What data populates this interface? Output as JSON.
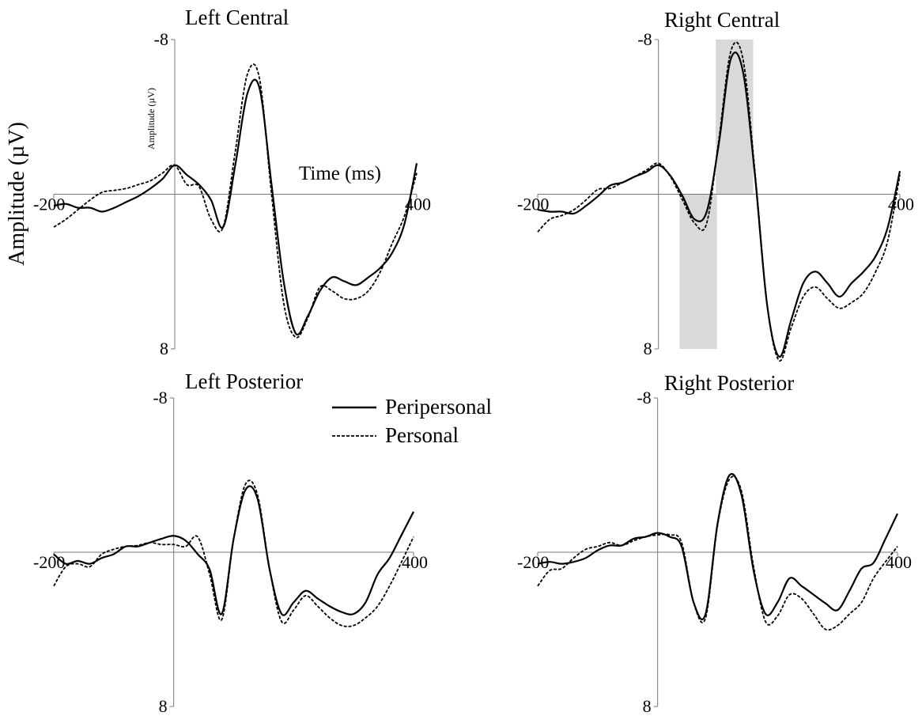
{
  "figure": {
    "ylabel": "Amplitude (µV)"
  },
  "chart_data": [
    {
      "type": "line",
      "title": "Left Central",
      "ylabel": "Amplitude (µV)",
      "xlabel": "Time (ms)",
      "x": [
        -200,
        -180,
        -160,
        -140,
        -120,
        -100,
        -80,
        -60,
        -40,
        -20,
        0,
        20,
        40,
        60,
        80,
        100,
        120,
        140,
        160,
        180,
        200,
        220,
        240,
        260,
        280,
        300,
        320,
        340,
        360,
        380,
        400
      ],
      "series": [
        {
          "name": "Peripersonal",
          "color": "#000000",
          "dash": false,
          "values": [
            0.6,
            0.5,
            0.7,
            0.7,
            0.9,
            0.7,
            0.4,
            0.1,
            -0.3,
            -0.8,
            -1.5,
            -1.0,
            -0.5,
            0.3,
            1.7,
            -1.5,
            -5.2,
            -5.5,
            -0.5,
            4.5,
            7.2,
            6.3,
            5.0,
            4.3,
            4.5,
            4.7,
            4.3,
            3.8,
            3.0,
            1.5,
            -1.6
          ]
        },
        {
          "name": "Personal",
          "color": "#000000",
          "dash": true,
          "values": [
            1.7,
            1.3,
            0.8,
            0.3,
            -0.1,
            -0.2,
            -0.3,
            -0.5,
            -0.7,
            -1.1,
            -1.5,
            -0.5,
            -0.4,
            1.3,
            1.7,
            -2.2,
            -6.2,
            -6.0,
            0,
            5.6,
            7.4,
            6.4,
            4.8,
            5.0,
            5.4,
            5.4,
            5.0,
            4.0,
            2.5,
            1.1,
            -1.1
          ]
        }
      ],
      "xlim": [
        -200,
        400
      ],
      "ylim": [
        -8,
        8
      ],
      "xticks": [
        -200,
        400
      ],
      "yticks": [
        -8,
        8
      ],
      "y_inverted": true
    },
    {
      "type": "line",
      "title": "Right Central",
      "x": [
        -200,
        -180,
        -160,
        -140,
        -120,
        -100,
        -80,
        -60,
        -40,
        -20,
        0,
        20,
        40,
        60,
        80,
        100,
        120,
        140,
        160,
        180,
        200,
        220,
        240,
        260,
        280,
        300,
        320,
        340,
        360,
        380,
        400
      ],
      "series": [
        {
          "name": "Peripersonal",
          "color": "#000000",
          "dash": false,
          "values": [
            0.8,
            0.9,
            0.9,
            1.0,
            0.6,
            0.1,
            -0.45,
            -0.6,
            -0.9,
            -1.15,
            -1.5,
            -0.95,
            0.1,
            1.3,
            0.9,
            -2.6,
            -7.0,
            -6.35,
            -0.95,
            5.7,
            8.4,
            6.5,
            4.6,
            4.0,
            4.6,
            5.3,
            4.6,
            4.0,
            3.2,
            1.7,
            -1.2
          ]
        },
        {
          "name": "Personal",
          "color": "#000000",
          "dash": true,
          "values": [
            1.95,
            1.3,
            1.1,
            0.8,
            0.3,
            -0.25,
            -0.3,
            -0.6,
            -0.9,
            -1.25,
            -1.6,
            -0.9,
            0.3,
            1.5,
            1.5,
            -2.8,
            -7.4,
            -7.0,
            -1.15,
            5.7,
            8.6,
            6.9,
            5.3,
            4.8,
            5.4,
            5.9,
            5.6,
            5.1,
            4.0,
            2.4,
            -1.0
          ]
        }
      ],
      "highlights": [
        {
          "x": [
            35,
            97
          ],
          "y": [
            0,
            8
          ]
        },
        {
          "x": [
            95,
            157
          ],
          "y": [
            -8,
            0
          ]
        }
      ],
      "highlight_color": "#d9d9d9",
      "xlim": [
        -200,
        400
      ],
      "ylim": [
        -8,
        8
      ],
      "xticks": [
        -200,
        400
      ],
      "yticks": [
        -8,
        8
      ],
      "y_inverted": true
    },
    {
      "type": "line",
      "title": "Left Posterior",
      "legend": "upper right",
      "x": [
        -200,
        -180,
        -160,
        -140,
        -120,
        -100,
        -80,
        -60,
        -40,
        -20,
        0,
        20,
        40,
        60,
        80,
        100,
        120,
        140,
        160,
        180,
        200,
        220,
        240,
        260,
        280,
        300,
        320,
        340,
        360,
        380,
        400
      ],
      "series": [
        {
          "name": "Peripersonal",
          "color": "#000000",
          "dash": false,
          "values": [
            0.1,
            0.6,
            0.45,
            0.6,
            0.3,
            0.1,
            -0.3,
            -0.3,
            -0.5,
            -0.7,
            -0.85,
            -0.6,
            0.1,
            0.9,
            3.2,
            -0.7,
            -3.25,
            -2.75,
            0.9,
            3.2,
            2.6,
            2.0,
            2.4,
            2.8,
            3.1,
            3.2,
            2.6,
            1.15,
            0.3,
            -0.9,
            -2.1
          ]
        },
        {
          "name": "Personal",
          "color": "#000000",
          "dash": true,
          "values": [
            1.75,
            0.75,
            0.6,
            0.75,
            0.1,
            -0.15,
            -0.3,
            -0.35,
            -0.5,
            -0.4,
            -0.4,
            -0.3,
            -0.8,
            1.15,
            3.5,
            -0.7,
            -3.55,
            -2.95,
            0.9,
            3.6,
            3.0,
            2.25,
            2.8,
            3.4,
            3.8,
            3.8,
            3.4,
            2.8,
            1.75,
            0.5,
            -0.8
          ]
        }
      ],
      "xlim": [
        -200,
        400
      ],
      "ylim": [
        -8,
        8
      ],
      "xticks": [
        -200,
        400
      ],
      "yticks": [
        -8,
        8
      ],
      "y_inverted": true
    },
    {
      "type": "line",
      "title": "Right Posterior",
      "x": [
        -200,
        -180,
        -160,
        -140,
        -120,
        -100,
        -80,
        -60,
        -40,
        -20,
        0,
        20,
        40,
        60,
        80,
        100,
        120,
        140,
        160,
        180,
        200,
        220,
        240,
        260,
        280,
        300,
        320,
        340,
        360,
        380,
        400
      ],
      "series": [
        {
          "name": "Peripersonal",
          "color": "#000000",
          "dash": false,
          "values": [
            0.6,
            0.5,
            0.6,
            0.5,
            0.3,
            -0.1,
            -0.35,
            -0.35,
            -0.7,
            -0.8,
            -1.0,
            -0.8,
            -0.3,
            2.6,
            3.2,
            -1.5,
            -4.0,
            -2.95,
            0.95,
            3.2,
            2.6,
            1.35,
            1.75,
            2.2,
            2.65,
            3.0,
            2.0,
            0.85,
            0.55,
            -0.7,
            -2.0
          ]
        },
        {
          "name": "Personal",
          "color": "#000000",
          "dash": true,
          "values": [
            1.75,
            0.95,
            0.85,
            0.3,
            -0.15,
            -0.3,
            -0.5,
            -0.35,
            -0.6,
            -0.8,
            -0.9,
            -0.9,
            -0.5,
            2.6,
            3.4,
            -1.4,
            -3.8,
            -3.15,
            0.75,
            3.6,
            3.3,
            2.2,
            2.4,
            3.2,
            4.0,
            3.8,
            3.2,
            2.6,
            1.35,
            0.5,
            -0.3
          ]
        }
      ],
      "xlim": [
        -200,
        400
      ],
      "ylim": [
        -8,
        8
      ],
      "xticks": [
        -200,
        400
      ],
      "yticks": [
        -8,
        8
      ],
      "y_inverted": true
    }
  ]
}
